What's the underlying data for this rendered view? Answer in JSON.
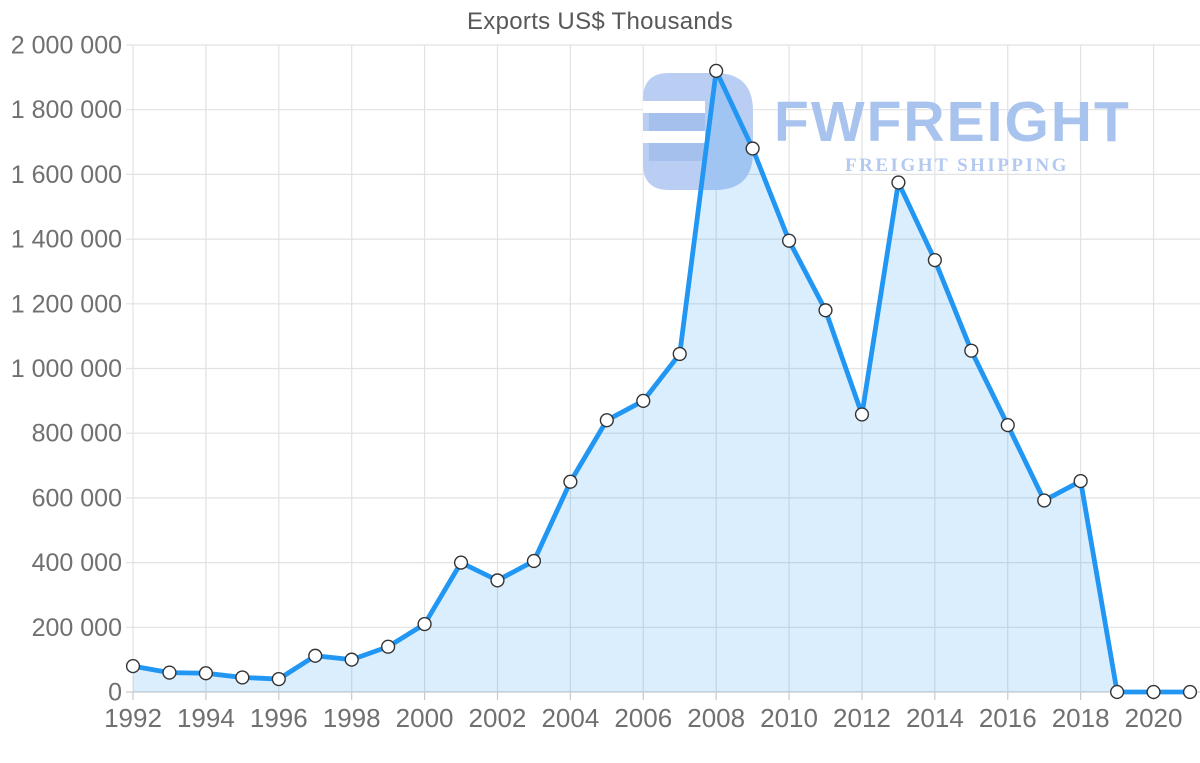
{
  "title": "Exports US$ Thousands",
  "watermark": {
    "brand": "FWFREIGHT",
    "tagline": "FREIGHT SHIPPING",
    "logo_icon": "fwfreight-logo-icon",
    "brand_color": "#a9c3ef",
    "tagline_color": "#b4c9f0",
    "logo_base_color": "#bacef3",
    "logo_bar_color": "#a5c0ec"
  },
  "chart_data": {
    "type": "area",
    "title": "Exports US$ Thousands",
    "x": [
      1992,
      1993,
      1994,
      1995,
      1996,
      1997,
      1998,
      1999,
      2000,
      2001,
      2002,
      2003,
      2004,
      2005,
      2006,
      2007,
      2008,
      2009,
      2010,
      2011,
      2012,
      2013,
      2014,
      2015,
      2016,
      2017,
      2018,
      2019,
      2020,
      2021
    ],
    "values": [
      80000,
      60000,
      58000,
      45000,
      40000,
      112000,
      100000,
      140000,
      210000,
      400000,
      345000,
      405000,
      650000,
      840000,
      900000,
      1045000,
      1920000,
      1680000,
      1395000,
      1180000,
      858000,
      1575000,
      1335000,
      1055000,
      825000,
      592000,
      652000,
      0,
      0,
      0
    ],
    "xlabel": "",
    "ylabel": "",
    "ylim": [
      0,
      2000000
    ],
    "y_tick_step": 200000,
    "y_tick_labels": [
      "0",
      "200 000",
      "400 000",
      "600 000",
      "800 000",
      "1 000 000",
      "1 200 000",
      "1 400 000",
      "1 600 000",
      "1 800 000",
      "2 000 000"
    ],
    "x_tick_labels": [
      "1992",
      "1994",
      "1996",
      "1998",
      "2000",
      "2002",
      "2004",
      "2006",
      "2008",
      "2010",
      "2012",
      "2014",
      "2016",
      "2018",
      "2020"
    ],
    "grid": true,
    "legend": "none",
    "line_color": "#2196f3",
    "fill_color": "rgba(33,150,243,0.16)",
    "marker_fill": "#ffffff",
    "marker_stroke": "#333333",
    "grid_color": "#e2e2e2",
    "axis_color": "#c6cacd",
    "label_color": "#707070"
  }
}
